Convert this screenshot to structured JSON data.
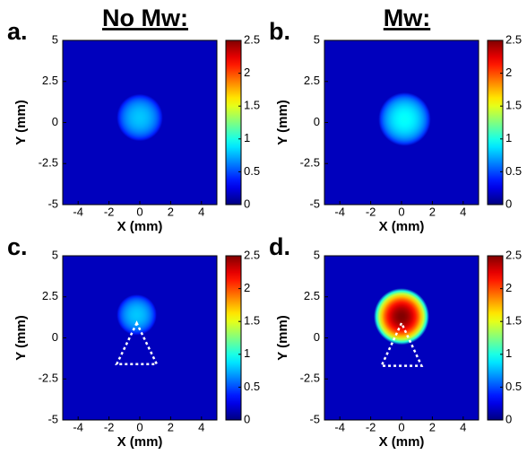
{
  "chart_data": [
    {
      "type": "heatmap",
      "label": "a.",
      "title": "No Mw:",
      "xlabel": "X (mm)",
      "ylabel": "Y (mm)",
      "xlim": [
        -5,
        5
      ],
      "ylim": [
        -5,
        5
      ],
      "xticks": [
        -4,
        -2,
        0,
        2,
        4
      ],
      "yticks": [
        -5,
        -2.5,
        0,
        2.5,
        5
      ],
      "clim": [
        0,
        2.5
      ],
      "cticks": [
        0,
        0.5,
        1,
        1.5,
        2,
        2.5
      ],
      "colormap": "jet",
      "background": 0.15,
      "spot": {
        "x": 0,
        "y": 0.3,
        "radius": 1.5,
        "peak": 0.8
      }
    },
    {
      "type": "heatmap",
      "label": "b.",
      "title": "Mw:",
      "xlabel": "X (mm)",
      "ylabel": "Y (mm)",
      "xlim": [
        -5,
        5
      ],
      "ylim": [
        -5,
        5
      ],
      "xticks": [
        -4,
        -2,
        0,
        2,
        4
      ],
      "yticks": [
        -5,
        -2.5,
        0,
        2.5,
        5
      ],
      "clim": [
        0,
        2.5
      ],
      "cticks": [
        0,
        0.5,
        1,
        1.5,
        2,
        2.5
      ],
      "colormap": "jet",
      "background": 0.15,
      "spot": {
        "x": 0.2,
        "y": 0.2,
        "radius": 1.7,
        "peak": 0.95
      }
    },
    {
      "type": "heatmap",
      "label": "c.",
      "xlabel": "X (mm)",
      "ylabel": "Y (mm)",
      "xlim": [
        -5,
        5
      ],
      "ylim": [
        -5,
        5
      ],
      "xticks": [
        -4,
        -2,
        0,
        2,
        4
      ],
      "yticks": [
        -5,
        -2.5,
        0,
        2.5,
        5
      ],
      "clim": [
        0,
        2.5
      ],
      "cticks": [
        0,
        0.5,
        1,
        1.5,
        2,
        2.5
      ],
      "colormap": "jet",
      "background": 0.15,
      "spot": {
        "x": -0.2,
        "y": 1.4,
        "radius": 1.3,
        "peak": 0.8
      },
      "triangle_x": [
        -0.2,
        -1.5,
        1.1
      ],
      "triangle_y": [
        0.9,
        -1.6,
        -1.6
      ]
    },
    {
      "type": "heatmap",
      "label": "d.",
      "xlabel": "X (mm)",
      "ylabel": "Y (mm)",
      "xlim": [
        -5,
        5
      ],
      "ylim": [
        -5,
        5
      ],
      "xticks": [
        -4,
        -2,
        0,
        2,
        4
      ],
      "yticks": [
        -5,
        -2.5,
        0,
        2.5,
        5
      ],
      "clim": [
        0,
        2.5
      ],
      "cticks": [
        0,
        0.5,
        1,
        1.5,
        2,
        2.5
      ],
      "colormap": "jet",
      "background": 0.15,
      "spot": {
        "x": 0,
        "y": 1.3,
        "radius": 1.8,
        "peak": 2.5
      },
      "triangle_x": [
        0,
        -1.3,
        1.3
      ],
      "triangle_y": [
        0.9,
        -1.7,
        -1.7
      ]
    }
  ]
}
